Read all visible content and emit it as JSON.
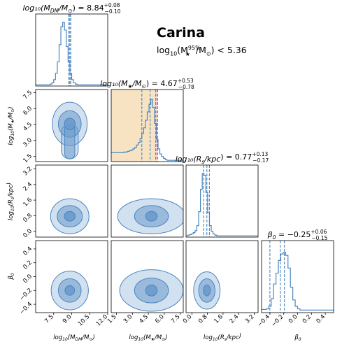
{
  "figure": {
    "title": "Carina",
    "limit_prefix": "log",
    "limit_base_sub": "10",
    "limit_open": "(M",
    "limit_star_sub": "★",
    "limit_sup": "95%",
    "limit_close": "/M",
    "limit_sun_sub": "⊙",
    "limit_value": ") < 5.36"
  },
  "colors": {
    "line": "#4a86c0",
    "fill": "#6b9bcc",
    "dash": "#4a86c0",
    "band": "#f5dcb3",
    "magenta": "#e020e0"
  },
  "chart_data": {
    "type": "corner",
    "parameters": [
      {
        "id": "mdm",
        "diag_title": "log10(M_DM/M⊙) = 8.84 +0.08 −0.10",
        "title_main": "log₁₀(M",
        "title_sub": "DM",
        "title_rest": "/M",
        "title_sun": "⊙",
        "title_eq": ") = 8.84",
        "err_plus": "+0.08",
        "err_minus": "−0.10",
        "axis_label": "log₁₀(M_DM/M⊙)",
        "range": [
          6,
          12
        ],
        "ticks": [
          7.5,
          9.0,
          10.5,
          12.0
        ],
        "tick_labels": [
          "7.5",
          "9.0",
          "10.5",
          "12.0"
        ],
        "median": 8.84,
        "lo": 8.74,
        "hi": 8.92,
        "hist": [
          0.02,
          0.02,
          0.02,
          0.02,
          0.02,
          0.02,
          0.02,
          0.02,
          0.03,
          0.05,
          0.1,
          0.2,
          0.38,
          0.65,
          0.93,
          1.0,
          0.88,
          0.62,
          0.38,
          0.2,
          0.1,
          0.05,
          0.03,
          0.02,
          0.02,
          0.02,
          0.02,
          0.02,
          0.02,
          0.02,
          0.02,
          0.02,
          0.02,
          0.02,
          0.02,
          0.02,
          0.02,
          0.02,
          0.02,
          0.02
        ],
        "hist_range": [
          6,
          12
        ],
        "median_line_color": "#4a86c0"
      },
      {
        "id": "mstar",
        "diag_title": "log10(M★/M⊙) = 4.67 +0.53 −0.78",
        "title_main": "log₁₀(M",
        "title_sub": "★",
        "title_rest": "/M",
        "title_sun": "⊙",
        "title_eq": ") = 4.67",
        "err_plus": "+0.53",
        "err_minus": "−0.78",
        "axis_label": "log₁₀(M★/M⊙)",
        "range": [
          1.0,
          7.8
        ],
        "ticks": [
          1.5,
          3.0,
          4.5,
          6.0,
          7.5
        ],
        "tick_labels": [
          "1.5",
          "3.0",
          "4.5",
          "6.0",
          "7.5"
        ],
        "median": 4.67,
        "lo": 3.89,
        "hi": 5.2,
        "band": [
          1.0,
          5.36
        ],
        "upper_limit": 5.36,
        "hist": [
          0.14,
          0.14,
          0.14,
          0.14,
          0.14,
          0.14,
          0.14,
          0.15,
          0.15,
          0.16,
          0.17,
          0.18,
          0.2,
          0.22,
          0.26,
          0.3,
          0.36,
          0.44,
          0.53,
          0.65,
          0.78,
          0.9,
          0.98,
          0.85,
          0.6,
          0.35,
          0.2,
          0.12,
          0.08,
          0.05,
          0.03,
          0.02,
          0.02,
          0.02,
          0.02,
          0.02,
          0.02,
          0.02,
          0.02,
          0.02
        ],
        "hist_range": [
          1.0,
          7.8
        ]
      },
      {
        "id": "rs",
        "diag_title": "log10(R_s/kpc) = 0.77 +0.13 −0.17",
        "title_main": "log₁₀(R",
        "title_sub": "s",
        "title_rest": "/kpc",
        "title_sun": "",
        "title_eq": ") = 0.77",
        "err_plus": "+0.13",
        "err_minus": "−0.17",
        "axis_label": "log₁₀(R_s/kpc)",
        "range": [
          -0.3,
          3.4
        ],
        "ticks": [
          0.0,
          0.8,
          1.6,
          2.4,
          3.2
        ],
        "tick_labels": [
          "0.0",
          "0.8",
          "1.6",
          "2.4",
          "3.2"
        ],
        "median": 0.77,
        "lo": 0.6,
        "hi": 0.9,
        "hist": [
          0.02,
          0.03,
          0.04,
          0.05,
          0.07,
          0.1,
          0.18,
          0.4,
          0.75,
          1.0,
          0.97,
          0.7,
          0.38,
          0.18,
          0.09,
          0.05,
          0.03,
          0.02,
          0.02,
          0.02,
          0.02,
          0.02,
          0.02,
          0.02,
          0.02,
          0.02,
          0.02,
          0.02,
          0.02,
          0.02,
          0.02,
          0.02,
          0.02,
          0.02,
          0.02,
          0.02,
          0.02,
          0.02,
          0.02,
          0.02
        ],
        "hist_range": [
          -0.3,
          3.4
        ]
      },
      {
        "id": "beta",
        "diag_title": "β0 = −0.25 +0.06 −0.15",
        "title_main": "β",
        "title_sub": "0",
        "title_rest": "",
        "title_sun": "",
        "title_eq": " = −0.25",
        "err_plus": "+0.06",
        "err_minus": "−0.15",
        "axis_label": "β₀",
        "range": [
          -0.52,
          0.52
        ],
        "ticks": [
          -0.4,
          -0.2,
          0.0,
          0.2,
          0.4
        ],
        "tick_labels": [
          "−0.4",
          "−0.2",
          "0.0",
          "0.2",
          "0.4"
        ],
        "median": -0.25,
        "lo": -0.4,
        "hi": -0.19,
        "hist": [
          0.05,
          0.05,
          0.06,
          0.1,
          0.22,
          0.45,
          0.62,
          0.82,
          0.92,
          0.95,
          0.9,
          0.7,
          0.4,
          0.2,
          0.1,
          0.06,
          0.04,
          0.04,
          0.04,
          0.04,
          0.04,
          0.04,
          0.04,
          0.04,
          0.04,
          0.04,
          0.04,
          0.04,
          0.04,
          0.04
        ],
        "hist_range": [
          -0.52,
          0.52
        ]
      }
    ],
    "contours_2d": [
      {
        "row": 1,
        "col": 0,
        "cx": 8.84,
        "cy": 4.55,
        "levels": [
          {
            "rx": 0.45,
            "ry": 0.55
          },
          {
            "rx": 0.95,
            "ry": 1.25
          },
          {
            "rx": 1.45,
            "ry": 2.05
          }
        ],
        "tail": {
          "x_half": 0.7,
          "y_bottom": 1.25
        }
      },
      {
        "row": 2,
        "col": 0,
        "cx": 8.84,
        "cy": 0.77,
        "levels": [
          {
            "rx": 0.45,
            "ry": 0.25
          },
          {
            "rx": 1.05,
            "ry": 0.55
          },
          {
            "rx": 1.6,
            "ry": 0.9
          }
        ]
      },
      {
        "row": 2,
        "col": 1,
        "cx": 4.8,
        "cy": 0.77,
        "levels": [
          {
            "rx": 0.55,
            "ry": 0.25
          },
          {
            "rx": 1.6,
            "ry": 0.55
          },
          {
            "rx": 3.2,
            "ry": 0.9
          }
        ]
      },
      {
        "row": 3,
        "col": 0,
        "cx": 8.84,
        "cy": -0.2,
        "levels": [
          {
            "rx": 0.4,
            "ry": 0.07
          },
          {
            "rx": 0.95,
            "ry": 0.17
          },
          {
            "rx": 1.55,
            "ry": 0.28
          }
        ]
      },
      {
        "row": 3,
        "col": 1,
        "cx": 4.8,
        "cy": -0.2,
        "levels": [
          {
            "rx": 0.55,
            "ry": 0.08
          },
          {
            "rx": 1.6,
            "ry": 0.18
          },
          {
            "rx": 3.0,
            "ry": 0.3
          }
        ]
      },
      {
        "row": 3,
        "col": 2,
        "cx": 0.77,
        "cy": -0.2,
        "levels": [
          {
            "rx": 0.18,
            "ry": 0.08
          },
          {
            "rx": 0.42,
            "ry": 0.17
          },
          {
            "rx": 0.68,
            "ry": 0.27
          }
        ]
      }
    ]
  }
}
